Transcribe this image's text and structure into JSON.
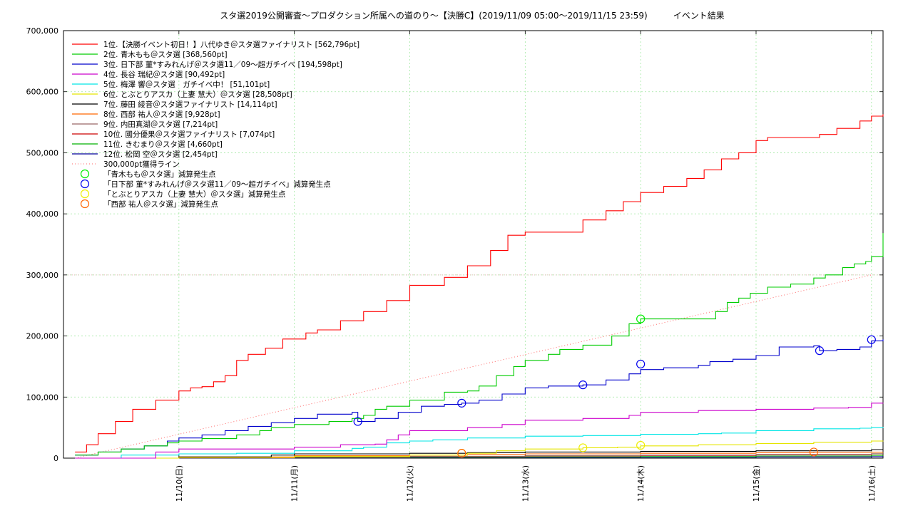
{
  "chart_data": {
    "type": "line",
    "title": "スタ選2019公開審査〜プロダクション所属への道のり〜【決勝C】(2019/11/09 05:00〜2019/11/15 23:59)　　　イベント結果",
    "xlabel": "",
    "ylabel": "",
    "xlim": [
      0,
      7.1
    ],
    "ylim": [
      0,
      700000
    ],
    "yticks": [
      0,
      100000,
      200000,
      300000,
      400000,
      500000,
      600000,
      700000
    ],
    "ytick_labels": [
      "0",
      "100,000",
      "200,000",
      "300,000",
      "400,000",
      "500,000",
      "600,000",
      "700,000"
    ],
    "xticks": [
      1,
      2,
      3,
      4,
      5,
      6,
      7
    ],
    "xtick_labels": [
      "11/10(日)",
      "11/11(月)",
      "11/12(火)",
      "11/13(水)",
      "11/14(木)",
      "11/15(金)",
      "11/16(土)"
    ],
    "grid": true,
    "legend_position": "top-left",
    "series": [
      {
        "name": "1位.【決勝イベント初日！】八代ゆき＠スタ選ファイナリスト [562,796pt]",
        "color": "#ff0000",
        "x": [
          0.1,
          0.2,
          0.3,
          0.45,
          0.6,
          0.8,
          1.0,
          1.1,
          1.2,
          1.3,
          1.4,
          1.5,
          1.6,
          1.75,
          1.9,
          2.1,
          2.2,
          2.4,
          2.6,
          2.8,
          3.0,
          3.3,
          3.5,
          3.7,
          3.85,
          4.0,
          4.35,
          4.5,
          4.7,
          4.85,
          5.0,
          5.2,
          5.4,
          5.55,
          5.7,
          5.85,
          6.0,
          6.1,
          6.3,
          6.55,
          6.7,
          6.9,
          7.0,
          7.1
        ],
        "y": [
          10000,
          22000,
          40000,
          60000,
          80000,
          95000,
          110000,
          115000,
          117000,
          125000,
          135000,
          160000,
          170000,
          180000,
          195000,
          205000,
          210000,
          225000,
          240000,
          258000,
          283000,
          296000,
          315000,
          340000,
          365000,
          370000,
          370000,
          390000,
          405000,
          420000,
          435000,
          445000,
          458000,
          472000,
          490000,
          500000,
          520000,
          525000,
          525000,
          530000,
          540000,
          552000,
          560000,
          563000
        ]
      },
      {
        "name": "2位. 青木もも＠スタ選 [368,560pt]",
        "color": "#00cc00",
        "x": [
          0.1,
          0.3,
          0.5,
          0.7,
          0.9,
          1.0,
          1.2,
          1.5,
          1.7,
          1.8,
          2.0,
          2.3,
          2.5,
          2.6,
          2.7,
          2.8,
          3.0,
          3.3,
          3.5,
          3.6,
          3.75,
          3.9,
          4.0,
          4.2,
          4.3,
          4.5,
          4.75,
          4.9,
          5.0,
          5.2,
          5.5,
          5.65,
          5.75,
          5.85,
          5.95,
          6.1,
          6.3,
          6.5,
          6.6,
          6.75,
          6.85,
          6.95,
          7.0,
          7.1
        ],
        "y": [
          5000,
          10000,
          15000,
          20000,
          25000,
          28000,
          32000,
          38000,
          45000,
          50000,
          55000,
          60000,
          65000,
          70000,
          80000,
          85000,
          95000,
          108000,
          110000,
          118000,
          135000,
          150000,
          160000,
          170000,
          178000,
          185000,
          200000,
          220000,
          228000,
          228000,
          228000,
          240000,
          255000,
          262000,
          270000,
          280000,
          285000,
          295000,
          300000,
          312000,
          318000,
          322000,
          330000,
          368560
        ]
      },
      {
        "name": "3位. 日下部 菫*すみれんげ＠スタ選11／09〜超ガチイベ [194,598pt]",
        "color": "#0000cc",
        "x": [
          0.1,
          0.3,
          0.5,
          0.7,
          0.9,
          1.0,
          1.2,
          1.4,
          1.6,
          1.8,
          2.0,
          2.2,
          2.5,
          2.55,
          2.7,
          2.9,
          3.1,
          3.3,
          3.45,
          3.6,
          3.8,
          4.0,
          4.2,
          4.5,
          4.55,
          4.7,
          4.9,
          5.0,
          5.2,
          5.5,
          5.6,
          5.8,
          6.0,
          6.2,
          6.5,
          6.55,
          6.7,
          6.9,
          7.0,
          7.1
        ],
        "y": [
          5000,
          10000,
          15000,
          20000,
          28000,
          33000,
          38000,
          45000,
          52000,
          58000,
          65000,
          72000,
          75000,
          60000,
          65000,
          75000,
          85000,
          88000,
          90000,
          95000,
          105000,
          115000,
          118000,
          120000,
          120000,
          128000,
          138000,
          145000,
          148000,
          152000,
          158000,
          162000,
          168000,
          182000,
          184000,
          176000,
          178000,
          182000,
          192000,
          194598
        ]
      },
      {
        "name": "4位. 長谷 瑞紀＠スタ選 [90,492pt]",
        "color": "#cc00cc",
        "x": [
          0.1,
          0.6,
          0.8,
          1.0,
          1.5,
          2.0,
          2.4,
          2.7,
          2.8,
          2.9,
          3.0,
          3.5,
          3.8,
          4.0,
          4.5,
          4.9,
          5.0,
          5.5,
          6.0,
          6.5,
          6.8,
          7.0,
          7.1
        ],
        "y": [
          0,
          0,
          10000,
          15000,
          15000,
          18000,
          22000,
          23000,
          30000,
          38000,
          45000,
          50000,
          55000,
          62000,
          65000,
          70000,
          75000,
          78000,
          80000,
          82000,
          83000,
          90000,
          90492
        ]
      },
      {
        "name": "5位. 梅澤 響＠スタ選　ガチイベ中！ [51,101pt]",
        "color": "#00e5e5",
        "x": [
          0.1,
          0.5,
          1.0,
          1.5,
          2.0,
          2.5,
          2.6,
          2.8,
          3.0,
          3.2,
          3.5,
          4.0,
          4.5,
          5.0,
          5.5,
          5.7,
          6.0,
          6.5,
          6.9,
          7.0,
          7.1
        ],
        "y": [
          0,
          5000,
          7000,
          8000,
          12000,
          16000,
          18000,
          25000,
          28000,
          30000,
          33000,
          36000,
          37000,
          39000,
          40000,
          41000,
          45000,
          48000,
          49000,
          50000,
          51101
        ]
      },
      {
        "name": "6位. とぶとりアスカ（上妻 慧大）＠スタ選 [28,508pt]",
        "color": "#e5e500",
        "x": [
          0.1,
          1.0,
          2.0,
          3.0,
          3.5,
          3.75,
          4.0,
          4.5,
          4.8,
          5.0,
          5.5,
          6.0,
          6.5,
          7.0,
          7.1
        ],
        "y": [
          0,
          1000,
          3000,
          5000,
          8000,
          12000,
          15000,
          17000,
          18000,
          20000,
          22000,
          24000,
          26000,
          28000,
          28508
        ]
      },
      {
        "name": "7位. 藤田 綾音＠スタ選ファイナリスト [14,114pt]",
        "color": "#000000",
        "x": [
          0.1,
          1.0,
          1.8,
          2.0,
          3.0,
          3.5,
          4.0,
          5.0,
          6.0,
          7.0,
          7.1
        ],
        "y": [
          0,
          2000,
          5000,
          7000,
          8000,
          9000,
          10000,
          11000,
          12000,
          14000,
          14114
        ]
      },
      {
        "name": "8位. 西部 祐人＠スタ選 [9,928pt]",
        "color": "#ff6600",
        "x": [
          0.1,
          1.0,
          2.0,
          3.0,
          3.5,
          4.0,
          5.0,
          6.0,
          6.5,
          7.0,
          7.1
        ],
        "y": [
          0,
          2000,
          4000,
          5000,
          6000,
          7000,
          8000,
          9000,
          9500,
          9900,
          9928
        ]
      },
      {
        "name": "9位. 内田真湖＠スタ選 [7,214pt]",
        "color": "#996666",
        "x": [
          0.1,
          1.0,
          2.0,
          3.0,
          4.0,
          5.0,
          6.0,
          7.0,
          7.1
        ],
        "y": [
          0,
          1000,
          2000,
          3000,
          4000,
          5000,
          6000,
          7200,
          7214
        ]
      },
      {
        "name": "10位. 國分優果＠スタ選ファイナリスト [7,074pt]",
        "color": "#cc0000",
        "x": [
          0.1,
          1.0,
          2.0,
          3.0,
          4.0,
          5.0,
          6.0,
          7.0,
          7.1
        ],
        "y": [
          0,
          500,
          1500,
          2500,
          3500,
          4500,
          5500,
          7000,
          7074
        ]
      },
      {
        "name": "11位. きむまり＠スタ選 [4,660pt]",
        "color": "#00b000",
        "x": [
          0.1,
          1.0,
          2.0,
          3.0,
          4.0,
          5.0,
          6.0,
          7.0,
          7.1
        ],
        "y": [
          0,
          500,
          1000,
          1500,
          2000,
          2500,
          3500,
          4600,
          4660
        ]
      },
      {
        "name": "12位. 松岡 空＠スタ選 [2,454pt]",
        "color": "#000099",
        "x": [
          0.1,
          1.0,
          2.0,
          3.0,
          4.0,
          5.0,
          6.0,
          7.0,
          7.1
        ],
        "y": [
          0,
          200,
          500,
          800,
          1000,
          1500,
          2000,
          2400,
          2454
        ]
      }
    ],
    "reference_line": {
      "name": "300,000pt獲得ライン",
      "color": "#ff6666",
      "x": [
        0.1,
        7.0
      ],
      "y": [
        0,
        300000
      ]
    },
    "markers": [
      {
        "name": "「青木もも＠スタ選」減算発生点",
        "color": "#00ee00",
        "x": [
          5.0
        ],
        "y": [
          228000
        ]
      },
      {
        "name": "「日下部 菫*すみれんげ＠スタ選11／09〜超ガチイベ」減算発生点",
        "color": "#0000ee",
        "x": [
          2.55,
          3.45,
          4.5,
          5.0,
          6.55,
          7.0
        ],
        "y": [
          60000,
          90000,
          120000,
          154000,
          176000,
          194000
        ]
      },
      {
        "name": "「とぶとりアスカ（上妻 慧大）＠スタ選」減算発生点",
        "color": "#eeee00",
        "x": [
          3.45,
          4.5,
          5.0
        ],
        "y": [
          8000,
          17000,
          21000
        ]
      },
      {
        "name": "「西部 祐人＠スタ選」減算発生点",
        "color": "#ff6600",
        "x": [
          3.45,
          6.5
        ],
        "y": [
          8000,
          10000
        ]
      }
    ]
  }
}
